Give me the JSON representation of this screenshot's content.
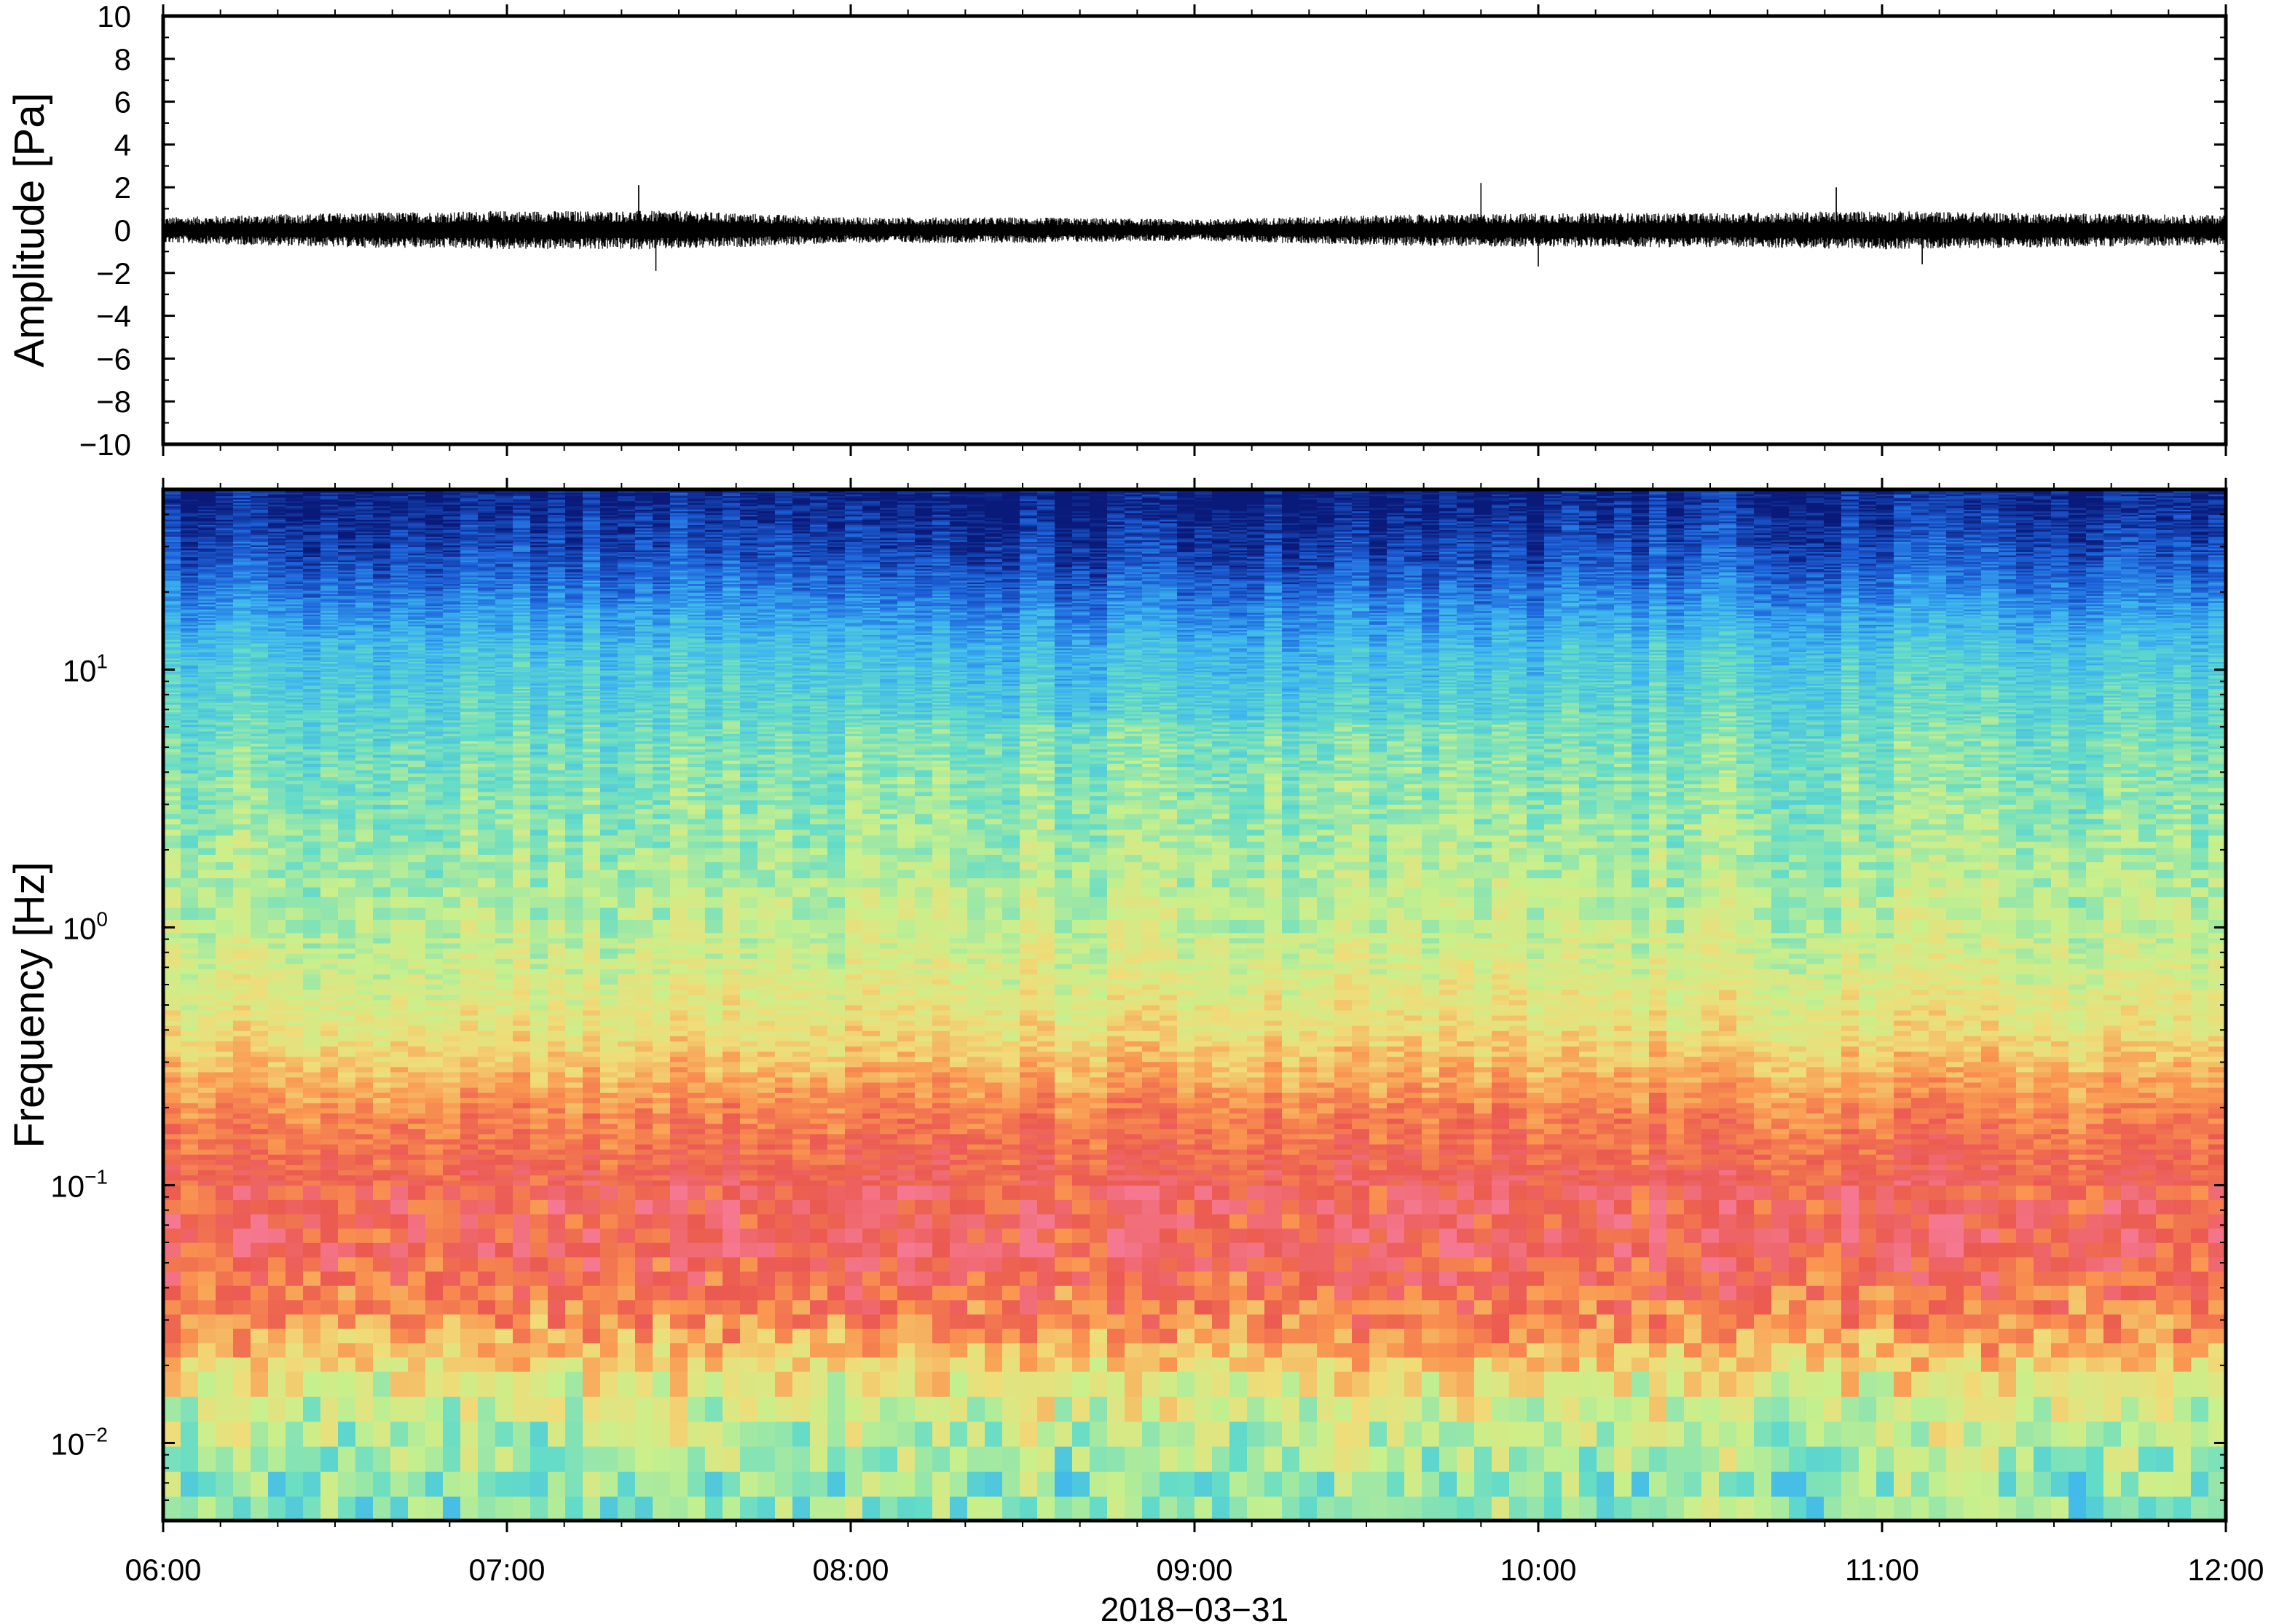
{
  "chart_data": [
    {
      "type": "line",
      "ylabel": "Amplitude [Pa]",
      "ylim": [
        -10,
        10
      ],
      "yticks": [
        "10",
        "8",
        "6",
        "4",
        "2",
        "0",
        "−2",
        "−4",
        "−6",
        "−8",
        "−10"
      ],
      "ytick_values": [
        10,
        8,
        6,
        4,
        2,
        0,
        -2,
        -4,
        -6,
        -8,
        -10
      ],
      "xlim": [
        "2018-03-31 06:00",
        "2018-03-31 12:00"
      ],
      "series": [
        {
          "color": "#000000",
          "x": [
            "06:00",
            "06:30",
            "07:00",
            "07:30",
            "08:00",
            "08:30",
            "09:00",
            "09:30",
            "10:00",
            "10:30",
            "11:00",
            "11:30",
            "12:00"
          ],
          "envelope_upper": [
            0.6,
            0.8,
            0.9,
            0.9,
            0.6,
            0.6,
            0.5,
            0.7,
            0.8,
            0.8,
            0.9,
            0.8,
            0.7
          ],
          "envelope_lower": [
            -0.6,
            -0.8,
            -0.9,
            -0.9,
            -0.6,
            -0.6,
            -0.5,
            -0.7,
            -0.8,
            -0.8,
            -0.9,
            -0.8,
            -0.7
          ],
          "peaks": [
            {
              "x": "07:23",
              "y": 2.1
            },
            {
              "x": "07:26",
              "y": -1.9
            },
            {
              "x": "09:50",
              "y": 2.2
            },
            {
              "x": "10:00",
              "y": -1.7
            },
            {
              "x": "10:52",
              "y": 2.0
            },
            {
              "x": "11:07",
              "y": -1.6
            }
          ]
        }
      ]
    },
    {
      "type": "heatmap",
      "ylabel": "Frequency [Hz]",
      "y_scale": "log",
      "ylim": [
        0.005,
        50
      ],
      "yticks": [
        {
          "base": "10",
          "exp": "1",
          "value": 10
        },
        {
          "base": "10",
          "exp": "0",
          "value": 1
        },
        {
          "base": "10",
          "exp": "−1",
          "value": 0.1
        },
        {
          "base": "10",
          "exp": "−2",
          "value": 0.01
        }
      ],
      "xlabel": "2018−03−31",
      "xticks": [
        "06:00",
        "07:00",
        "08:00",
        "09:00",
        "10:00",
        "11:00",
        "12:00"
      ],
      "xlim": [
        "06:00",
        "12:00"
      ],
      "colormap": "rainbow (dark blue = low power, red = high power)",
      "colors": [
        "#0a1a7a",
        "#1e64dc",
        "#3cb4f0",
        "#64dcc8",
        "#c8f08c",
        "#f0dc78",
        "#fa9650",
        "#eb5a50",
        "#f57890"
      ],
      "relative_power_by_frequency": [
        {
          "frequency": 45,
          "level": 0.03
        },
        {
          "frequency": 25,
          "level": 0.12
        },
        {
          "frequency": 12,
          "level": 0.3
        },
        {
          "frequency": 5,
          "level": 0.4
        },
        {
          "frequency": 1,
          "level": 0.5
        },
        {
          "frequency": 0.4,
          "level": 0.6
        },
        {
          "frequency": 0.2,
          "level": 0.78
        },
        {
          "frequency": 0.1,
          "level": 0.88
        },
        {
          "frequency": 0.06,
          "level": 0.9
        },
        {
          "frequency": 0.03,
          "level": 0.78
        },
        {
          "frequency": 0.015,
          "level": 0.55
        },
        {
          "frequency": 0.007,
          "level": 0.42
        }
      ]
    }
  ]
}
